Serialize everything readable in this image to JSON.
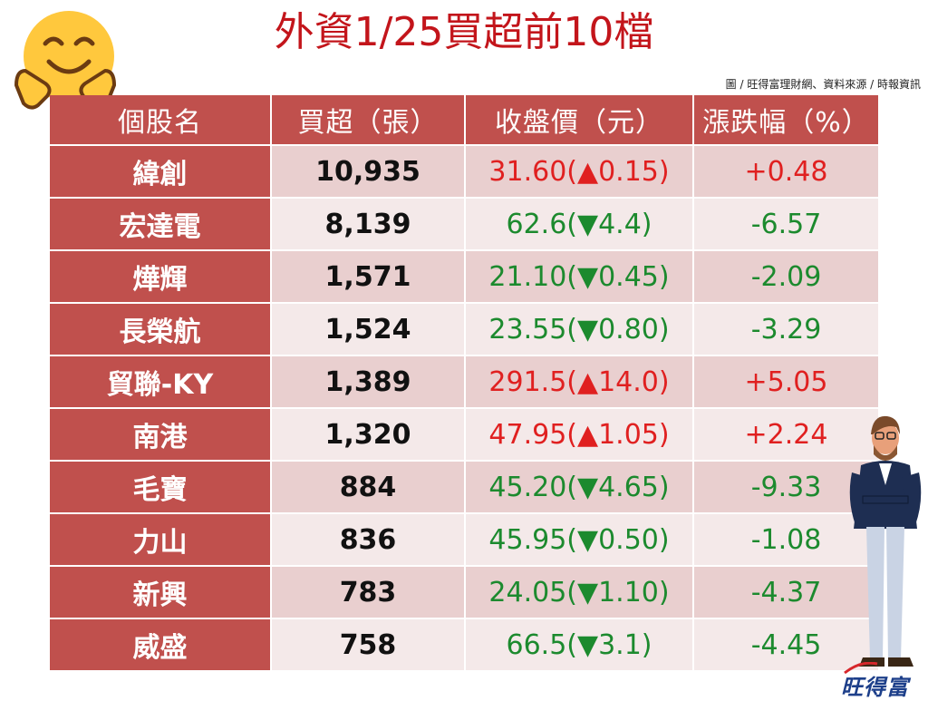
{
  "title": "外資1/25買超前10檔",
  "credit": "圖 / 旺得富理財網、資料來源 / 時報資訊",
  "logo_text": "旺得富",
  "colors": {
    "header": "#c0504d",
    "title": "#c3151b",
    "up": "#e02020",
    "down": "#1c8a2e"
  },
  "chart_data": {
    "type": "table",
    "columns": [
      "個股名",
      "買超（張）",
      "收盤價（元）",
      "漲跌幅（%）"
    ],
    "rows": [
      {
        "name": "緯創",
        "volume": "10,935",
        "price": "31.60(▲0.15)",
        "change_pct": "+0.48",
        "dir": "up"
      },
      {
        "name": "宏達電",
        "volume": "8,139",
        "price": "62.6(▼4.4)",
        "change_pct": "-6.57",
        "dir": "down"
      },
      {
        "name": "燁輝",
        "volume": "1,571",
        "price": "21.10(▼0.45)",
        "change_pct": "-2.09",
        "dir": "down"
      },
      {
        "name": "長榮航",
        "volume": "1,524",
        "price": "23.55(▼0.80)",
        "change_pct": "-3.29",
        "dir": "down"
      },
      {
        "name": "貿聯-KY",
        "volume": "1,389",
        "price": "291.5(▲14.0)",
        "change_pct": "+5.05",
        "dir": "up"
      },
      {
        "name": "南港",
        "volume": "1,320",
        "price": "47.95(▲1.05)",
        "change_pct": "+2.24",
        "dir": "up"
      },
      {
        "name": "毛寶",
        "volume": "884",
        "price": "45.20(▼4.65)",
        "change_pct": "-9.33",
        "dir": "down"
      },
      {
        "name": "力山",
        "volume": "836",
        "price": "45.95(▼0.50)",
        "change_pct": "-1.08",
        "dir": "down"
      },
      {
        "name": "新興",
        "volume": "783",
        "price": "24.05(▼1.10)",
        "change_pct": "-4.37",
        "dir": "down"
      },
      {
        "name": "威盛",
        "volume": "758",
        "price": "66.5(▼3.1)",
        "change_pct": "-4.45",
        "dir": "down"
      }
    ]
  }
}
